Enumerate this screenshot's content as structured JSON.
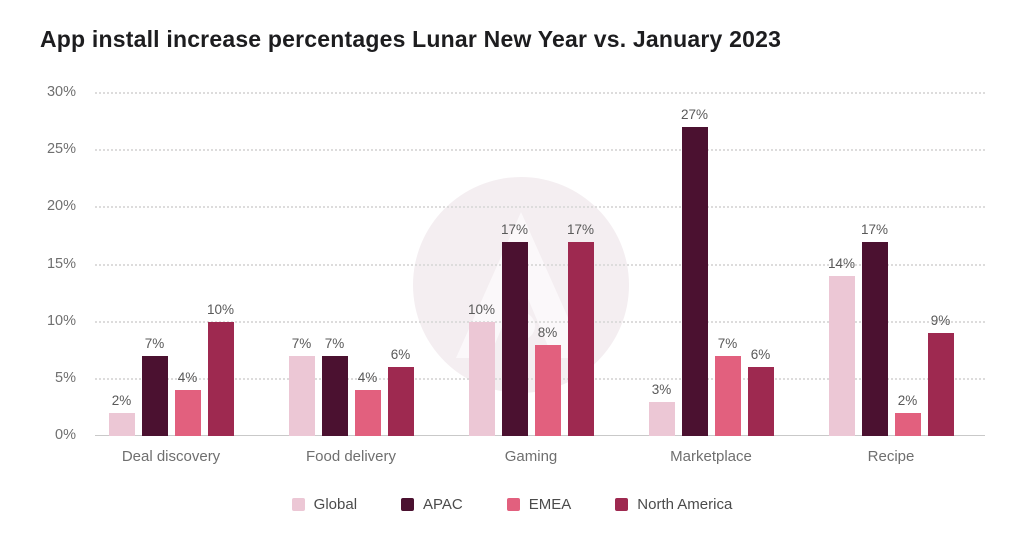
{
  "chart_data": {
    "type": "bar",
    "title": "App install increase percentages Lunar New Year vs. January 2023",
    "categories": [
      "Deal discovery",
      "Food delivery",
      "Gaming",
      "Marketplace",
      "Recipe"
    ],
    "series": [
      {
        "name": "Global",
        "color": "#ECC7D5",
        "values": [
          2,
          7,
          10,
          3,
          14
        ]
      },
      {
        "name": "APAC",
        "color": "#4B1130",
        "values": [
          7,
          7,
          17,
          27,
          17
        ]
      },
      {
        "name": "EMEA",
        "color": "#E2607E",
        "values": [
          4,
          4,
          8,
          7,
          2
        ]
      },
      {
        "name": "North America",
        "color": "#9E2950",
        "values": [
          10,
          6,
          17,
          6,
          9
        ]
      }
    ],
    "y_ticks": [
      "0%",
      "5%",
      "10%",
      "15%",
      "20%",
      "25%",
      "30%"
    ],
    "ylim": [
      0,
      30
    ],
    "value_label_format": "{v}%",
    "grid": "dotted horizontal, solid baseline",
    "legend_position": "bottom",
    "xlabel": "",
    "ylabel": ""
  },
  "watermark": {
    "icon": "brand-logo-circle-a",
    "circle_color": "#F4EEF1",
    "glyph_color": "#FBF8FA"
  },
  "style_colors": {
    "title_text": "#1d1d1f",
    "tick_text": "#6f6f6f",
    "value_text": "#595959",
    "category_text": "#6f6f6f",
    "legend_text": "#4b4b4b",
    "gridline_dotted": "#dddcdc",
    "axis_baseline": "#c9c9c9",
    "background": "#ffffff"
  }
}
